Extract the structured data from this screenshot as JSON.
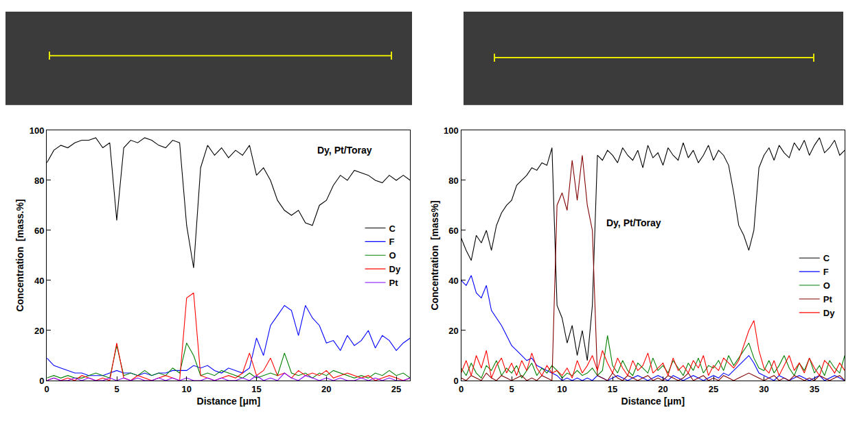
{
  "chart_data": [
    {
      "type": "line",
      "title": "Dy, Pt/Toray",
      "x_label": "Distance [μm]",
      "y_label": "Concentration  [mass.%]",
      "x": [
        0,
        0.5,
        1,
        1.5,
        2,
        2.5,
        3,
        3.5,
        4,
        4.5,
        5,
        5.5,
        6,
        6.5,
        7,
        7.5,
        8,
        8.5,
        9,
        9.5,
        10,
        10.5,
        11,
        11.5,
        12,
        12.5,
        13,
        13.5,
        14,
        14.5,
        15,
        15.5,
        16,
        16.5,
        17,
        17.5,
        18,
        18.5,
        19,
        19.5,
        20,
        20.5,
        21,
        21.5,
        22,
        22.5,
        23,
        23.5,
        24,
        24.5,
        25,
        25.5,
        26
      ],
      "series": [
        {
          "name": "C",
          "color": "#000000",
          "values": [
            87,
            92,
            94,
            93,
            95,
            96,
            96,
            97,
            93,
            95,
            64,
            93,
            96,
            95,
            97,
            96,
            94,
            93,
            96,
            95,
            62,
            45,
            85,
            94,
            90,
            93,
            89,
            92,
            90,
            94,
            82,
            85,
            80,
            72,
            68,
            66,
            68,
            63,
            62,
            70,
            72,
            78,
            82,
            80,
            84,
            83,
            82,
            80,
            79,
            82,
            80,
            82,
            80
          ]
        },
        {
          "name": "F",
          "color": "#0000ff",
          "values": [
            9,
            6,
            5,
            4,
            3,
            3,
            2,
            2,
            2,
            3,
            4,
            3,
            3,
            2,
            3,
            2,
            3,
            3,
            4,
            4,
            4,
            6,
            5,
            6,
            4,
            3,
            5,
            4,
            3,
            5,
            17,
            10,
            22,
            26,
            30,
            28,
            18,
            30,
            25,
            22,
            15,
            16,
            12,
            18,
            14,
            16,
            20,
            13,
            18,
            16,
            12,
            15,
            17
          ]
        },
        {
          "name": "O",
          "color": "#008000",
          "values": [
            1,
            2,
            1,
            2,
            1,
            1,
            2,
            3,
            2,
            1,
            14,
            2,
            3,
            2,
            4,
            2,
            3,
            2,
            5,
            3,
            15,
            10,
            2,
            3,
            2,
            4,
            3,
            2,
            1,
            3,
            1,
            2,
            3,
            2,
            11,
            3,
            2,
            3,
            1,
            3,
            2,
            4,
            3,
            2,
            1,
            2,
            1,
            3,
            2,
            4,
            2,
            3,
            1
          ]
        },
        {
          "name": "Dy",
          "color": "#ff0000",
          "values": [
            0,
            1,
            0,
            1,
            0,
            2,
            1,
            0,
            1,
            0,
            15,
            1,
            0,
            2,
            1,
            0,
            1,
            2,
            1,
            0,
            33,
            35,
            2,
            1,
            0,
            1,
            2,
            1,
            3,
            11,
            2,
            4,
            9,
            2,
            3,
            1,
            4,
            2,
            3,
            2,
            4,
            1,
            2,
            3,
            2,
            1,
            2,
            0,
            1,
            2,
            1,
            0,
            1
          ]
        },
        {
          "name": "Pt",
          "color": "#8000ff",
          "values": [
            0,
            1,
            0,
            0,
            1,
            0,
            1,
            0,
            0,
            1,
            0,
            1,
            0,
            1,
            0,
            0,
            1,
            0,
            1,
            0,
            1,
            0,
            0,
            1,
            0,
            1,
            0,
            0,
            1,
            0,
            2,
            0,
            1,
            0,
            3,
            1,
            0,
            2,
            1,
            0,
            1,
            0,
            1,
            0,
            0,
            1,
            0,
            1,
            0,
            1,
            0,
            0,
            1
          ]
        }
      ],
      "xlim": [
        0,
        26
      ],
      "xticks": [
        0,
        5,
        10,
        15,
        20,
        25
      ],
      "ylim": [
        0,
        100
      ],
      "yticks": [
        0,
        20,
        40,
        60,
        80,
        100
      ],
      "grid": false,
      "legend": "right"
    },
    {
      "type": "line",
      "title": "Dy, Pt/Toray",
      "x_label": "Distance [μm]",
      "y_label": "Concentration  [mass%]",
      "x": [
        0,
        0.5,
        1,
        1.5,
        2,
        2.5,
        3,
        3.5,
        4,
        4.5,
        5,
        5.5,
        6,
        6.5,
        7,
        7.5,
        8,
        8.5,
        9,
        9.5,
        10,
        10.5,
        11,
        11.5,
        12,
        12.5,
        13,
        13.5,
        14,
        14.5,
        15,
        15.5,
        16,
        16.5,
        17,
        17.5,
        18,
        18.5,
        19,
        19.5,
        20,
        20.5,
        21,
        21.5,
        22,
        22.5,
        23,
        23.5,
        24,
        24.5,
        25,
        25.5,
        26,
        26.5,
        27,
        27.5,
        28,
        28.5,
        29,
        29.5,
        30,
        30.5,
        31,
        31.5,
        32,
        32.5,
        33,
        33.5,
        34,
        34.5,
        35,
        35.5,
        36,
        36.5,
        37,
        37.5,
        38
      ],
      "series": [
        {
          "name": "C",
          "color": "#000000",
          "values": [
            57,
            52,
            48,
            58,
            55,
            60,
            52,
            62,
            67,
            70,
            72,
            78,
            80,
            82,
            85,
            84,
            87,
            86,
            93,
            30,
            25,
            15,
            22,
            10,
            20,
            8,
            30,
            90,
            88,
            92,
            90,
            87,
            93,
            90,
            88,
            92,
            85,
            94,
            89,
            91,
            86,
            93,
            90,
            88,
            95,
            89,
            92,
            87,
            90,
            94,
            88,
            92,
            90,
            86,
            75,
            62,
            58,
            52,
            60,
            85,
            90,
            93,
            88,
            94,
            91,
            89,
            95,
            92,
            96,
            90,
            94,
            97,
            91,
            93,
            96,
            90,
            92
          ]
        },
        {
          "name": "F",
          "color": "#0000ff",
          "values": [
            40,
            38,
            42,
            35,
            33,
            38,
            28,
            25,
            22,
            18,
            14,
            12,
            10,
            8,
            9,
            6,
            5,
            4,
            3,
            2,
            0,
            1,
            0,
            1,
            0,
            1,
            0,
            2,
            1,
            0,
            1,
            2,
            1,
            0,
            1,
            2,
            1,
            0,
            1,
            2,
            1,
            0,
            2,
            1,
            0,
            1,
            2,
            1,
            0,
            1,
            2,
            1,
            3,
            2,
            4,
            6,
            8,
            10,
            7,
            3,
            2,
            1,
            0,
            2,
            1,
            0,
            1,
            2,
            1,
            0,
            1,
            2,
            0,
            1,
            2,
            1,
            0
          ]
        },
        {
          "name": "O",
          "color": "#008000",
          "values": [
            5,
            2,
            7,
            3,
            1,
            6,
            4,
            8,
            2,
            5,
            3,
            6,
            1,
            4,
            7,
            2,
            5,
            3,
            6,
            4,
            1,
            3,
            2,
            4,
            2,
            3,
            5,
            2,
            4,
            18,
            6,
            3,
            8,
            4,
            2,
            7,
            5,
            3,
            9,
            4,
            6,
            3,
            8,
            5,
            2,
            7,
            4,
            9,
            3,
            6,
            5,
            8,
            4,
            10,
            6,
            9,
            12,
            15,
            9,
            5,
            4,
            8,
            3,
            6,
            10,
            5,
            2,
            7,
            4,
            9,
            3,
            6,
            2,
            8,
            5,
            3,
            10
          ]
        },
        {
          "name": "Pt",
          "color": "#800000",
          "values": [
            1,
            0,
            2,
            1,
            0,
            3,
            1,
            0,
            2,
            1,
            0,
            1,
            2,
            0,
            1,
            0,
            2,
            1,
            0,
            70,
            75,
            68,
            88,
            72,
            90,
            70,
            60,
            2,
            1,
            0,
            3,
            1,
            0,
            2,
            1,
            0,
            1,
            2,
            0,
            1,
            0,
            2,
            1,
            0,
            1,
            3,
            0,
            1,
            2,
            0,
            1,
            0,
            2,
            1,
            0,
            1,
            2,
            3,
            2,
            1,
            0,
            1,
            2,
            0,
            1,
            0,
            2,
            1,
            0,
            1,
            0,
            2,
            1,
            0,
            1,
            2,
            0
          ]
        },
        {
          "name": "Dy",
          "color": "#ff0000",
          "values": [
            3,
            8,
            2,
            10,
            5,
            12,
            1,
            6,
            9,
            3,
            7,
            2,
            8,
            4,
            11,
            5,
            2,
            6,
            3,
            4,
            2,
            5,
            1,
            8,
            3,
            6,
            10,
            4,
            12,
            7,
            3,
            9,
            5,
            2,
            8,
            4,
            6,
            11,
            3,
            5,
            7,
            2,
            9,
            4,
            6,
            3,
            8,
            5,
            10,
            2,
            6,
            4,
            9,
            7,
            5,
            8,
            14,
            20,
            24,
            12,
            5,
            3,
            8,
            2,
            6,
            10,
            4,
            7,
            3,
            9,
            5,
            2,
            8,
            6,
            3,
            7,
            4
          ]
        }
      ],
      "xlim": [
        0,
        38
      ],
      "xticks": [
        0,
        5,
        10,
        15,
        20,
        25,
        30,
        35
      ],
      "ylim": [
        0,
        100
      ],
      "yticks": [
        0,
        20,
        40,
        60,
        80,
        100
      ],
      "grid": false,
      "legend": "right"
    }
  ]
}
